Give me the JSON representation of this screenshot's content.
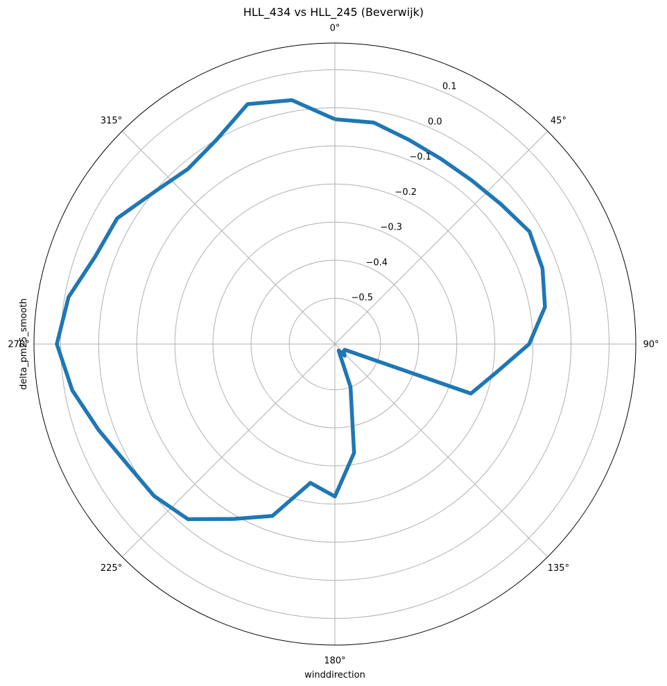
{
  "chart_data": {
    "type": "line",
    "title": "HLL_434 vs HLL_245 (Beverwijk)",
    "xlabel": "winddirection",
    "ylabel": "delta_pm25_smooth",
    "projection": "polar",
    "theta_zero_location": "N",
    "theta_direction": "clockwise",
    "rlim": [
      -0.62,
      0.17
    ],
    "grid": true,
    "angle_ticks": [
      0,
      45,
      90,
      135,
      180,
      225,
      270,
      315
    ],
    "angle_tick_labels": [
      "0°",
      "45°",
      "90°",
      "135°",
      "180°",
      "225°",
      "270°",
      "315°"
    ],
    "radial_ticks": [
      -0.5,
      -0.4,
      -0.3,
      -0.2,
      -0.1,
      0.0,
      0.1
    ],
    "radial_tick_labels": [
      "−0.5",
      "−0.4",
      "−0.3",
      "−0.2",
      "−0.1",
      "0.0",
      "0.1"
    ],
    "radial_label_angle": 22.5,
    "series": [
      {
        "color": "#1f77b4",
        "x": [
          0,
          10,
          20,
          30,
          40,
          50,
          60,
          70,
          80,
          90,
          100,
          110,
          120,
          130,
          140,
          150,
          160,
          170,
          180,
          190,
          200,
          210,
          220,
          230,
          240,
          250,
          260,
          270,
          280,
          290,
          300,
          310,
          320,
          330,
          340,
          350,
          360
        ],
        "y": [
          -0.03,
          -0.03,
          -0.05,
          -0.06,
          -0.06,
          -0.05,
          -0.03,
          -0.04,
          -0.06,
          -0.11,
          -0.19,
          -0.24,
          -0.59,
          -0.59,
          -0.58,
          -0.6,
          -0.5,
          -0.33,
          -0.22,
          -0.25,
          -0.14,
          -0.09,
          -0.02,
          0.0,
          0.01,
          0.04,
          0.08,
          0.11,
          0.09,
          0.05,
          0.04,
          0.0,
          -0.02,
          0.0,
          0.05,
          0.03,
          -0.03
        ]
      }
    ]
  }
}
